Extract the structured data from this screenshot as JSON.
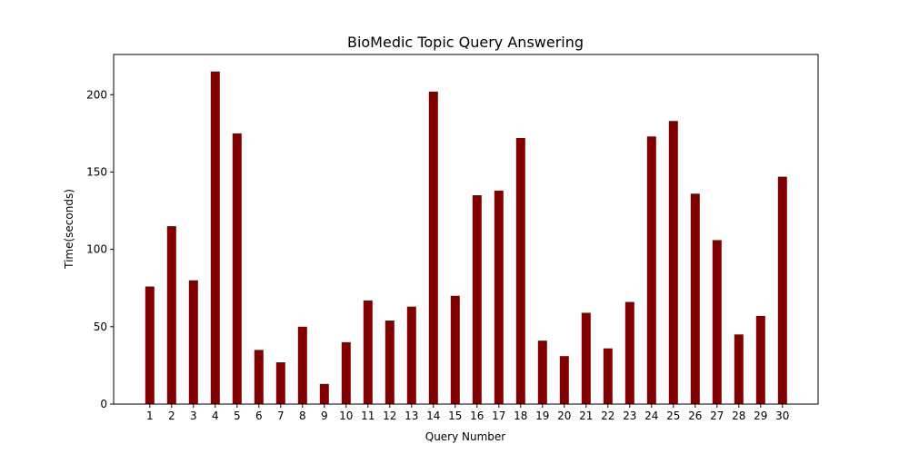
{
  "chart_data": {
    "type": "bar",
    "title": "BioMedic Topic Query Answering",
    "xlabel": "Query Number",
    "ylabel": "Time(seconds)",
    "categories": [
      "1",
      "2",
      "3",
      "4",
      "5",
      "6",
      "7",
      "8",
      "9",
      "10",
      "11",
      "12",
      "13",
      "14",
      "15",
      "16",
      "17",
      "18",
      "19",
      "20",
      "21",
      "22",
      "23",
      "24",
      "25",
      "26",
      "27",
      "28",
      "29",
      "30"
    ],
    "values": [
      76,
      115,
      80,
      215,
      175,
      35,
      27,
      50,
      13,
      40,
      67,
      54,
      63,
      202,
      70,
      135,
      138,
      172,
      41,
      31,
      59,
      36,
      66,
      173,
      183,
      136,
      106,
      45,
      57,
      147
    ],
    "ylim": [
      0,
      226
    ],
    "yticks": [
      0,
      50,
      100,
      150,
      200
    ],
    "bar_color": "#800000",
    "grid": false,
    "legend": "none"
  }
}
